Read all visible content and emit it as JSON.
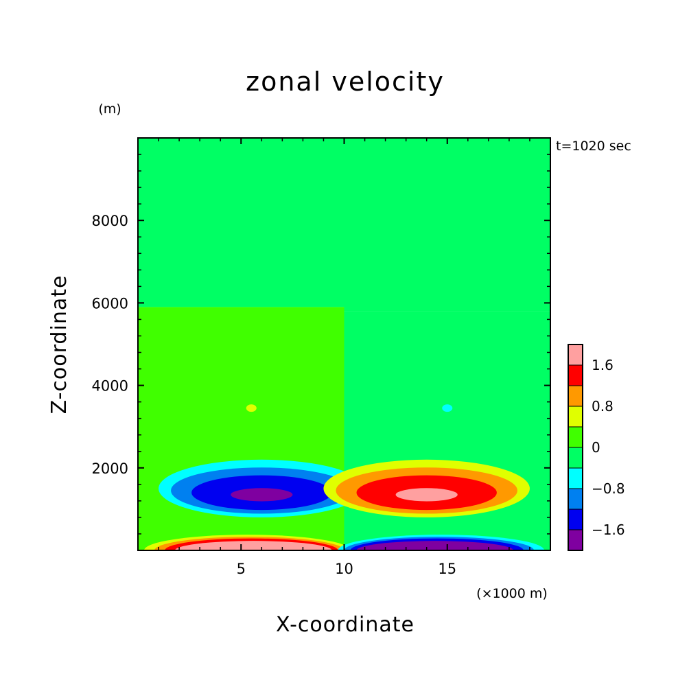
{
  "chart_data": {
    "type": "heatmap",
    "title": "zonal velocity",
    "xlabel": "X-coordinate",
    "ylabel": "Z-coordinate",
    "x_unit": "(×1000 m)",
    "y_unit": "(m)",
    "time_label": "t=1020 sec",
    "xlim": [
      0,
      20
    ],
    "ylim": [
      0,
      10000
    ],
    "x_ticks": [
      5,
      10,
      15
    ],
    "y_ticks": [
      2000,
      4000,
      6000,
      8000
    ],
    "x_tick_labels": [
      "5",
      "10",
      "15"
    ],
    "y_tick_labels": [
      "2000",
      "4000",
      "6000",
      "8000"
    ],
    "colorbar": {
      "levels": [
        -2.0,
        -1.6,
        -1.2,
        -0.8,
        -0.4,
        0,
        0.4,
        0.8,
        1.2,
        1.6,
        2.0
      ],
      "colors": [
        "#7f00a0",
        "#0000f0",
        "#0080f0",
        "#00ffff",
        "#00ff64",
        "#40ff00",
        "#e0ff00",
        "#ff9900",
        "#ff0000",
        "#ffa0a0"
      ],
      "tick_values": [
        1.6,
        0.8,
        0,
        -0.8,
        -1.6
      ],
      "tick_labels": [
        "1.6",
        "0.8",
        "0",
        "−0.8",
        "−1.6"
      ]
    },
    "background_fields": [
      {
        "x": [
          0,
          10
        ],
        "z": [
          0,
          5900
        ],
        "value": 0.1
      },
      {
        "x": [
          0,
          10
        ],
        "z": [
          5900,
          10000
        ],
        "value": -0.1
      },
      {
        "x": [
          10,
          20
        ],
        "z": [
          0,
          5800
        ],
        "value": -0.1
      },
      {
        "x": [
          10,
          20
        ],
        "z": [
          5800,
          10000
        ],
        "value": -0.1
      }
    ],
    "cells": [
      {
        "x": 6.0,
        "z": 1500,
        "rx": 5.0,
        "rz": 700,
        "value": -0.6
      },
      {
        "x": 6.0,
        "z": 1450,
        "rx": 4.4,
        "rz": 560,
        "value": -1.0
      },
      {
        "x": 6.0,
        "z": 1400,
        "rx": 3.4,
        "rz": 420,
        "value": -1.4
      },
      {
        "x": 6.0,
        "z": 1350,
        "rx": 1.5,
        "rz": 160,
        "value": -1.8
      },
      {
        "x": 14.0,
        "z": 1500,
        "rx": 5.0,
        "rz": 700,
        "value": 0.6
      },
      {
        "x": 14.0,
        "z": 1450,
        "rx": 4.4,
        "rz": 560,
        "value": 1.0
      },
      {
        "x": 14.0,
        "z": 1400,
        "rx": 3.4,
        "rz": 420,
        "value": 1.4
      },
      {
        "x": 14.0,
        "z": 1350,
        "rx": 1.5,
        "rz": 160,
        "value": 1.8
      },
      {
        "x": 5.5,
        "z": 3450,
        "rx": 0.25,
        "rz": 90,
        "value": 0.6
      },
      {
        "x": 15.0,
        "z": 3450,
        "rx": 0.25,
        "rz": 90,
        "value": -0.6
      }
    ],
    "surface_lobes": [
      {
        "x": 5.3,
        "rx": 5.0,
        "rz": 380,
        "value": 0.6
      },
      {
        "x": 5.4,
        "rx": 4.6,
        "rz": 330,
        "value": 1.0
      },
      {
        "x": 5.5,
        "rx": 4.2,
        "rz": 290,
        "value": 1.4
      },
      {
        "x": 5.6,
        "rx": 3.8,
        "rz": 230,
        "value": 1.8
      },
      {
        "x": 5.7,
        "rx": 3.3,
        "rz": 170,
        "value": 2.2
      },
      {
        "x": 14.7,
        "rx": 5.0,
        "rz": 380,
        "value": -0.6
      },
      {
        "x": 14.6,
        "rx": 4.6,
        "rz": 330,
        "value": -1.0
      },
      {
        "x": 14.5,
        "rx": 4.2,
        "rz": 290,
        "value": -1.4
      },
      {
        "x": 14.4,
        "rx": 3.8,
        "rz": 230,
        "value": -1.8
      },
      {
        "x": 14.3,
        "rx": 3.3,
        "rz": 170,
        "value": -2.2
      }
    ]
  }
}
